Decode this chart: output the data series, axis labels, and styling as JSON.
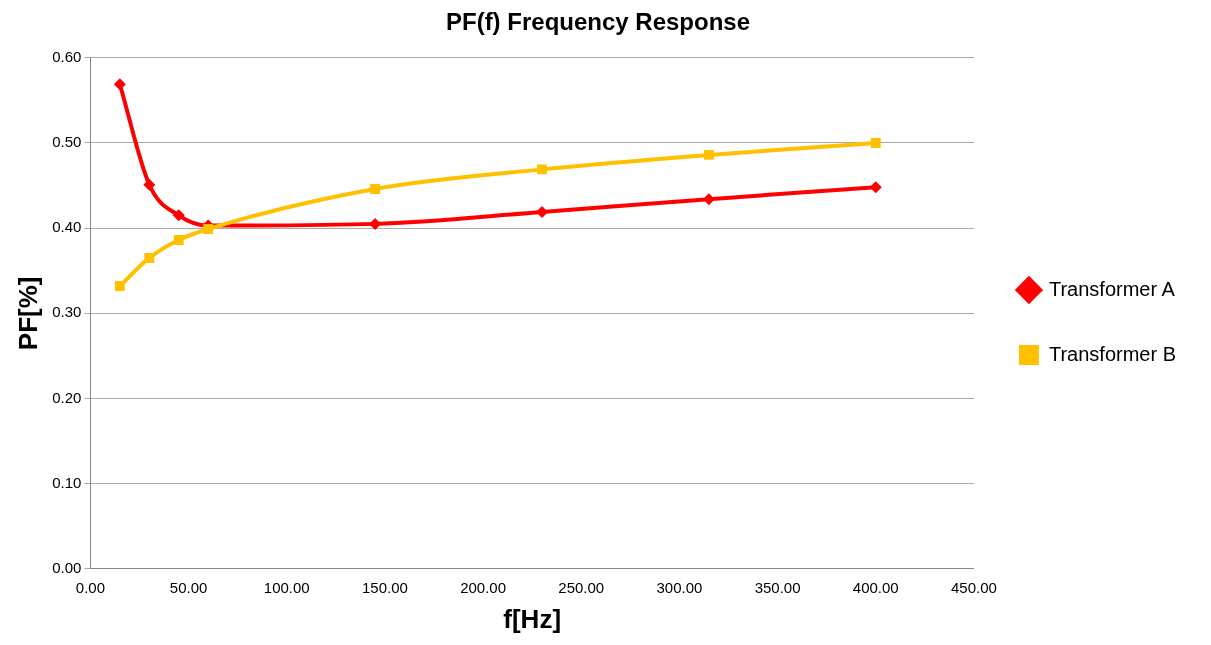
{
  "chart_data": {
    "type": "line",
    "title": "PF(f) Frequency Response",
    "xlabel": "f[Hz]",
    "ylabel": "PF[%]",
    "x": [
      15,
      30,
      45,
      60,
      145,
      230,
      315,
      400
    ],
    "series": [
      {
        "name": "Transformer A",
        "color": "#ff0000",
        "marker": "diamond",
        "values": [
          0.569,
          0.451,
          0.415,
          0.403,
          0.405,
          0.419,
          0.434,
          0.448
        ]
      },
      {
        "name": "Transformer B",
        "color": "#ffc000",
        "marker": "square",
        "values": [
          0.332,
          0.365,
          0.386,
          0.399,
          0.446,
          0.469,
          0.486,
          0.5
        ]
      }
    ],
    "xlim": [
      0,
      450
    ],
    "xticks": [
      {
        "value": 0,
        "label": "0.00"
      },
      {
        "value": 50,
        "label": "50.00"
      },
      {
        "value": 100,
        "label": "100.00"
      },
      {
        "value": 150,
        "label": "150.00"
      },
      {
        "value": 200,
        "label": "200.00"
      },
      {
        "value": 250,
        "label": "250.00"
      },
      {
        "value": 300,
        "label": "300.00"
      },
      {
        "value": 350,
        "label": "350.00"
      },
      {
        "value": 400,
        "label": "400.00"
      },
      {
        "value": 450,
        "label": "450.00"
      }
    ],
    "ylim": [
      0,
      0.6
    ],
    "yticks": [
      {
        "value": 0,
        "label": "0.00"
      },
      {
        "value": 0.1,
        "label": "0.10"
      },
      {
        "value": 0.2,
        "label": "0.20"
      },
      {
        "value": 0.3,
        "label": "0.30"
      },
      {
        "value": 0.4,
        "label": "0.40"
      },
      {
        "value": 0.5,
        "label": "0.50"
      },
      {
        "value": 0.6,
        "label": "0.60"
      }
    ],
    "grid": "y",
    "legend": "right",
    "line_style": "solid"
  }
}
